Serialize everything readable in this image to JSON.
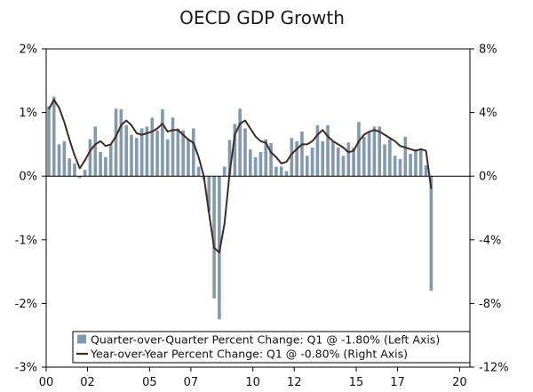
{
  "chart_data": {
    "type": "bar+line",
    "title": "OECD GDP Growth",
    "colors": {
      "bar": "#8299AE",
      "line": "#3E2B22",
      "axis": "#000000"
    },
    "left_axis": {
      "range": [
        -3,
        2
      ],
      "ticks": [
        2,
        1,
        0,
        -1,
        -2,
        -3
      ],
      "tick_labels": [
        "2%",
        "1%",
        "0%",
        "-1%",
        "-2%",
        "-3%"
      ]
    },
    "right_axis": {
      "range": [
        -12,
        8
      ],
      "ticks": [
        8,
        4,
        0,
        -4,
        -8,
        -12
      ],
      "tick_labels": [
        "8%",
        "4%",
        "0%",
        "-4%",
        "-8%",
        "-12%"
      ]
    },
    "x_range": [
      2000.0,
      2020.5
    ],
    "x_ticks": [
      2000,
      2002,
      2005,
      2007,
      2010,
      2012,
      2015,
      2017,
      2020
    ],
    "x_tick_labels": [
      "00",
      "02",
      "05",
      "07",
      "10",
      "12",
      "15",
      "17",
      "20"
    ],
    "legend": {
      "bar_label": "Quarter-over-Quarter Percent Change: Q1 @ -1.80% (Left Axis)",
      "line_label": "Year-over-Year Percent Change: Q1 @ -0.80% (Right Axis)"
    },
    "series": [
      {
        "name": "Quarter-over-Quarter Percent Change",
        "axis": "left",
        "start": 2000.0,
        "step": 0.25,
        "values": [
          1.1,
          1.25,
          0.5,
          0.55,
          0.28,
          0.2,
          -0.03,
          0.1,
          0.58,
          0.78,
          0.38,
          0.3,
          0.5,
          1.06,
          1.05,
          0.8,
          0.65,
          0.6,
          0.75,
          0.78,
          0.92,
          0.72,
          1.05,
          0.58,
          0.92,
          0.75,
          0.72,
          0.58,
          0.75,
          0.15,
          -0.05,
          -0.55,
          -1.92,
          -2.25,
          0.15,
          0.57,
          0.82,
          1.06,
          0.75,
          0.42,
          0.3,
          0.38,
          0.58,
          0.52,
          0.15,
          0.15,
          0.08,
          0.6,
          0.55,
          0.7,
          0.32,
          0.45,
          0.8,
          0.55,
          0.8,
          0.55,
          0.45,
          0.32,
          0.53,
          0.45,
          0.85,
          0.62,
          0.7,
          0.78,
          0.78,
          0.5,
          0.58,
          0.32,
          0.27,
          0.62,
          0.35,
          0.42,
          0.42,
          0.17,
          -1.8
        ]
      },
      {
        "name": "Year-over-Year Percent Change",
        "axis": "right",
        "start": 2000.0,
        "step": 0.25,
        "values": [
          4.2,
          4.8,
          4.3,
          3.4,
          2.3,
          1.3,
          0.5,
          1.0,
          1.6,
          2.0,
          2.2,
          1.9,
          2.0,
          2.5,
          3.2,
          3.5,
          3.2,
          2.7,
          2.6,
          2.7,
          2.8,
          3.0,
          3.3,
          2.8,
          2.9,
          2.9,
          2.6,
          2.3,
          2.1,
          1.2,
          0.0,
          -2.3,
          -4.5,
          -4.8,
          -3.0,
          0.2,
          2.6,
          3.3,
          3.5,
          3.0,
          2.5,
          2.2,
          2.1,
          1.5,
          1.2,
          0.8,
          0.9,
          1.4,
          1.7,
          2.0,
          2.0,
          2.2,
          2.6,
          2.9,
          2.5,
          2.2,
          2.0,
          1.8,
          1.5,
          1.6,
          2.2,
          2.6,
          2.8,
          2.9,
          2.8,
          2.6,
          2.4,
          2.2,
          1.9,
          1.8,
          1.7,
          1.6,
          1.7,
          1.6,
          -0.8
        ]
      }
    ]
  }
}
